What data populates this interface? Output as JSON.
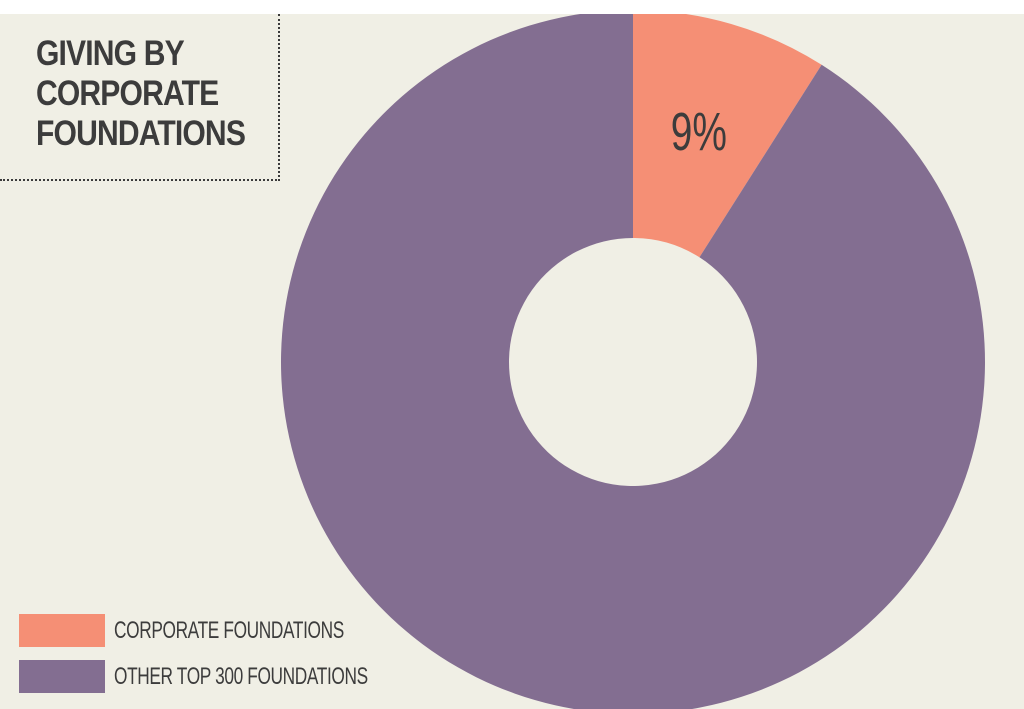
{
  "chart_data": {
    "type": "pie",
    "title": "GIVING BY CORPORATE FOUNDATIONS",
    "series": [
      {
        "name": "CORPORATE FOUNDATIONS",
        "value": 9,
        "label": "9%",
        "color": "#f58f75"
      },
      {
        "name": "OTHER TOP 300 FOUNDATIONS",
        "value": 91,
        "label": "",
        "color": "#836e91"
      }
    ],
    "legend_position": "bottom-left",
    "donut": true
  },
  "colors": {
    "background": "#f0efe5",
    "text": "#3c3c3c"
  }
}
